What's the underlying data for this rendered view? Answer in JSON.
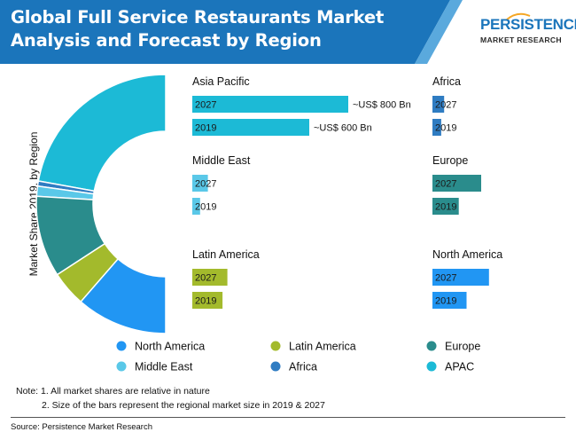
{
  "header": {
    "title_line1": "Global Full Service Restaurants Market",
    "title_line2": "Analysis and Forecast by Region",
    "band_color": "#1b75bb",
    "logo_top": "PERSISTENCE",
    "logo_bottom": "MARKET RESEARCH"
  },
  "chart_data": {
    "type": "bar",
    "y_axis_label": "Market Share 2019, by Region",
    "donut": {
      "type": "pie",
      "year": "2019",
      "slices": [
        {
          "name": "APAC",
          "share": 35,
          "color": "#1cbad6"
        },
        {
          "name": "Africa",
          "share": 1,
          "color": "#2f7cc2"
        },
        {
          "name": "Middle East",
          "share": 2,
          "color": "#5ac8e8"
        },
        {
          "name": "Europe",
          "share": 16,
          "color": "#2a8c8c"
        },
        {
          "name": "Latin America",
          "share": 7,
          "color": "#a3ba2c"
        },
        {
          "name": "North America",
          "share": 18,
          "color": "#2196f3"
        }
      ]
    },
    "regions": [
      {
        "name": "Asia Pacific",
        "color": "#1cbad6",
        "bars": [
          {
            "year": "2027",
            "value": 800,
            "annotation": "~US$ 800 Bn"
          },
          {
            "year": "2019",
            "value": 600,
            "annotation": "~US$ 600 Bn"
          }
        ]
      },
      {
        "name": "Middle East",
        "color": "#5ac8e8",
        "bars": [
          {
            "year": "2027",
            "value": 80
          },
          {
            "year": "2019",
            "value": 40
          }
        ]
      },
      {
        "name": "Latin America",
        "color": "#a3ba2c",
        "bars": [
          {
            "year": "2027",
            "value": 180
          },
          {
            "year": "2019",
            "value": 155
          }
        ]
      },
      {
        "name": "Africa",
        "color": "#2f7cc2",
        "bars": [
          {
            "year": "2027",
            "value": 60
          },
          {
            "year": "2019",
            "value": 45
          }
        ]
      },
      {
        "name": "Europe",
        "color": "#2a8c8c",
        "bars": [
          {
            "year": "2027",
            "value": 250
          },
          {
            "year": "2019",
            "value": 135
          }
        ]
      },
      {
        "name": "North America",
        "color": "#2196f3",
        "bars": [
          {
            "year": "2027",
            "value": 290
          },
          {
            "year": "2019",
            "value": 175
          }
        ]
      }
    ],
    "legend": [
      {
        "name": "North America",
        "color": "#2196f3"
      },
      {
        "name": "Latin America",
        "color": "#a3ba2c"
      },
      {
        "name": "Europe",
        "color": "#2a8c8c"
      },
      {
        "name": "Middle East",
        "color": "#5ac8e8"
      },
      {
        "name": "Africa",
        "color": "#2f7cc2"
      },
      {
        "name": "APAC",
        "color": "#1cbad6"
      }
    ]
  },
  "notes": {
    "line1": "Note: 1. All market shares are relative in nature",
    "line2": "2. Size of the bars represent the regional market size in 2019 & 2027"
  },
  "source": "Source: Persistence Market Research"
}
